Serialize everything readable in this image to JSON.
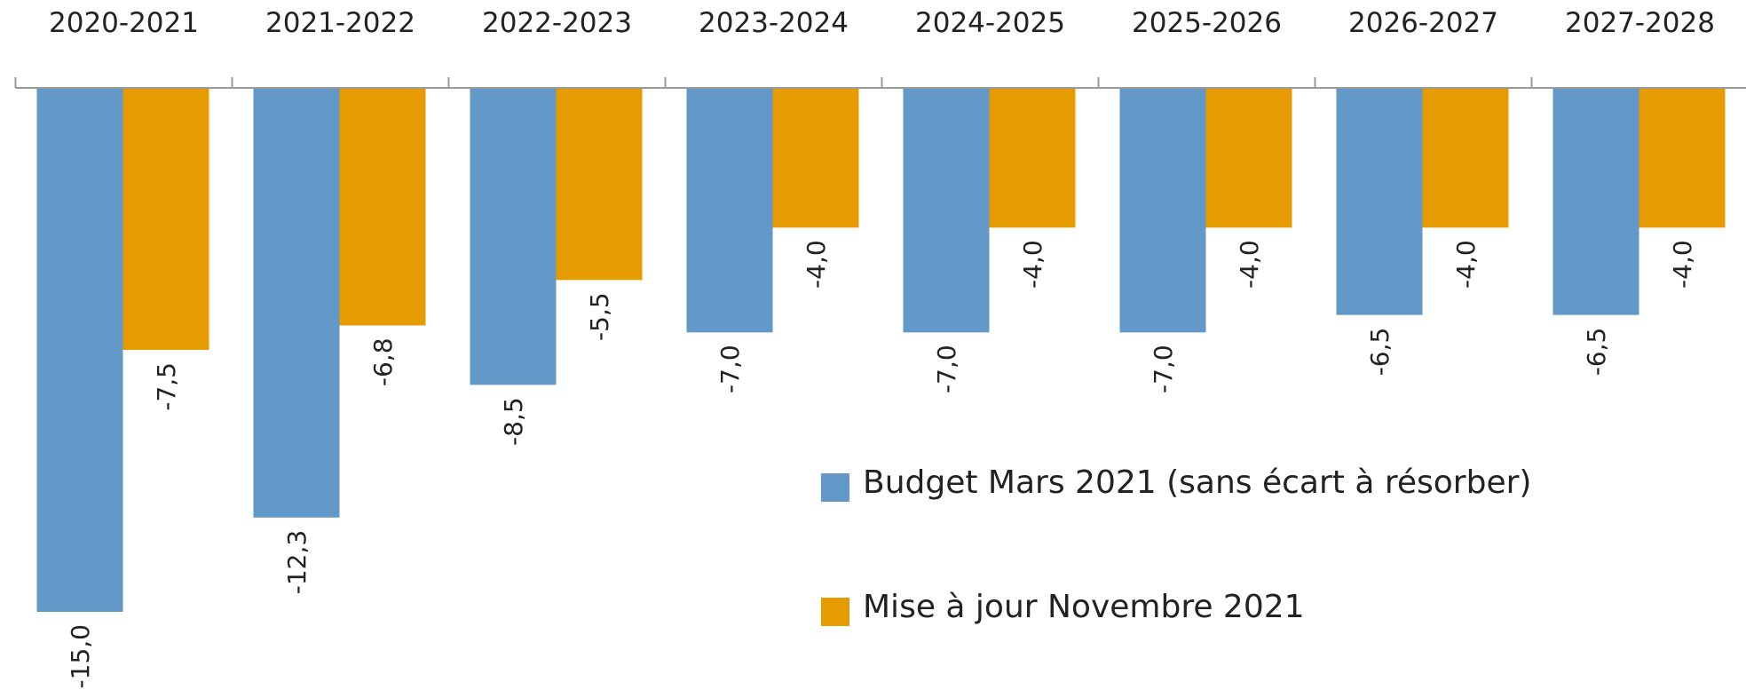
{
  "chart_data": {
    "type": "bar",
    "categories": [
      "2020-2021",
      "2021-2022",
      "2022-2023",
      "2023-2024",
      "2024-2025",
      "2025-2026",
      "2026-2027",
      "2027-2028"
    ],
    "series": [
      {
        "name": "Budget Mars 2021 (sans écart à résorber)",
        "color": "#6399c8",
        "values": [
          -15.0,
          -12.3,
          -8.5,
          -7.0,
          -7.0,
          -7.0,
          -6.5,
          -6.5
        ],
        "value_labels": [
          "-15,0",
          "-12,3",
          "-8,5",
          "-7,0",
          "-7,0",
          "-7,0",
          "-6,5",
          "-6,5"
        ]
      },
      {
        "name": "Mise à jour Novembre 2021",
        "color": "#e69b00",
        "values": [
          -7.5,
          -6.8,
          -5.5,
          -4.0,
          -4.0,
          -4.0,
          -4.0,
          -4.0
        ],
        "value_labels": [
          "-7,5",
          "-6,8",
          "-5,5",
          "-4,0",
          "-4,0",
          "-4,0",
          "-4,0",
          "-4,0"
        ]
      }
    ]
  }
}
